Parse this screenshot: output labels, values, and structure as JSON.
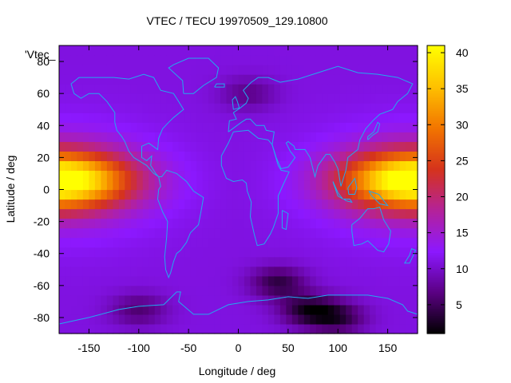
{
  "chart_data": {
    "type": "heatmap",
    "title": "VTEC / TECU 19970509_129.10800",
    "xlabel": "Longitude / deg",
    "ylabel": "Latitude / deg",
    "series_label": "'Vtec_",
    "xlim": [
      -180,
      180
    ],
    "ylim": [
      -90,
      90
    ],
    "x_ticks": [
      -150,
      -100,
      -50,
      0,
      50,
      100,
      150
    ],
    "y_ticks": [
      -80,
      -60,
      -40,
      -20,
      0,
      20,
      40,
      60,
      80
    ],
    "colorbar": {
      "range": [
        1,
        41
      ],
      "ticks": [
        5,
        10,
        15,
        20,
        25,
        30,
        35,
        40
      ],
      "palette": [
        "#000000",
        "#5a0082",
        "#8c18ff",
        "#b42299",
        "#d5331c",
        "#f27500",
        "#fec000",
        "#ffff00"
      ]
    },
    "features": {
      "background_vtec": 11,
      "maxima": [
        {
          "lon": -180,
          "lat": 6,
          "value": 40
        },
        {
          "lon": 180,
          "lat": 6,
          "value": 40
        },
        {
          "lon": 120,
          "lat": 5,
          "value": 30
        }
      ],
      "minima": [
        {
          "lon": 40,
          "lat": -58,
          "value": 4
        },
        {
          "lon": 70,
          "lat": -75,
          "value": 3
        },
        {
          "lon": 100,
          "lat": -80,
          "value": 4
        },
        {
          "lon": -100,
          "lat": -75,
          "value": 6
        },
        {
          "lon": 10,
          "lat": 60,
          "value": 7
        }
      ]
    },
    "colors": {
      "coastline": "#22aaee",
      "axes": "#000000",
      "background": "#ffffff"
    }
  }
}
